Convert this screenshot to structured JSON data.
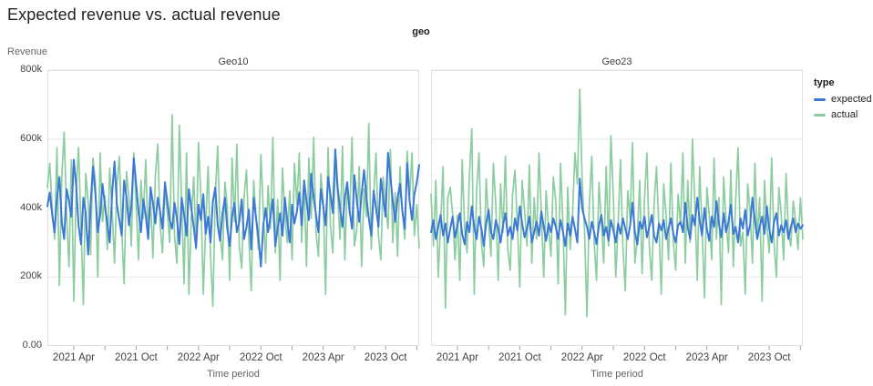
{
  "title": "Expected revenue vs. actual revenue",
  "chart_data": {
    "type": "line",
    "title": "Expected revenue vs. actual revenue",
    "facet_field": "geo",
    "layout": {
      "grid": "horizontal-only",
      "legend_position": "right",
      "points_per_series": 156,
      "x_granularity": "weekly"
    },
    "x": {
      "label": "Time period",
      "domain": [
        0,
        155
      ],
      "major_ticks": [
        {
          "i": 11,
          "label": "2021 Apr"
        },
        {
          "i": 37,
          "label": "2021 Oct"
        },
        {
          "i": 63,
          "label": "2022 Apr"
        },
        {
          "i": 89,
          "label": "2022 Oct"
        },
        {
          "i": 115,
          "label": "2023 Apr"
        },
        {
          "i": 141,
          "label": "2023 Oct"
        }
      ],
      "minor_ticks": [
        24,
        50,
        76,
        102,
        128,
        154
      ]
    },
    "y": {
      "label": "Revenue",
      "unit": "thousands",
      "domain": [
        0,
        800
      ],
      "ticks": [
        {
          "v": 0,
          "label": "0.00"
        },
        {
          "v": 200,
          "label": "200k"
        },
        {
          "v": 400,
          "label": "400k"
        },
        {
          "v": 600,
          "label": "600k"
        },
        {
          "v": 800,
          "label": "800k"
        }
      ]
    },
    "legend": {
      "title": "type",
      "items": [
        {
          "label": "expected",
          "color": "#3c78d7"
        },
        {
          "label": "actual",
          "color": "#8ccda0"
        }
      ]
    },
    "facets": [
      {
        "name": "Geo10",
        "series": [
          {
            "name": "expected",
            "color": "#3c78d7",
            "values": [
              405,
              445,
              380,
              330,
              430,
              490,
              360,
              310,
              455,
              420,
              375,
              540,
              465,
              350,
              295,
              430,
              385,
              265,
              410,
              520,
              445,
              330,
              380,
              470,
              405,
              355,
              300,
              445,
              535,
              410,
              365,
              320,
              480,
              430,
              350,
              405,
              545,
              470,
              390,
              330,
              425,
              380,
              310,
              460,
              415,
              355,
              430,
              390,
              340,
              475,
              420,
              365,
              340,
              415,
              370,
              295,
              430,
              380,
              320,
              455,
              400,
              345,
              285,
              410,
              365,
              440,
              325,
              375,
              300,
              420,
              460,
              350,
              305,
              385,
              430,
              340,
              290,
              375,
              415,
              330,
              360,
              425,
              310,
              345,
              395,
              280,
              430,
              370,
              315,
              230,
              350,
              400,
              330,
              375,
              425,
              290,
              340,
              385,
              320,
              430,
              365,
              300,
              410,
              355,
              390,
              445,
              350,
              480,
              420,
              365,
              500,
              430,
              380,
              330,
              455,
              405,
              350,
              490,
              440,
              385,
              570,
              460,
              400,
              345,
              430,
              475,
              390,
              340,
              495,
              420,
              360,
              440,
              510,
              430,
              370,
              320,
              450,
              400,
              345,
              485,
              430,
              375,
              560,
              490,
              420,
              360,
              430,
              470,
              390,
              340,
              530,
              420,
              365,
              440,
              475,
              525
            ]
          },
          {
            "name": "actual",
            "color": "#8ccda0",
            "values": [
              460,
              530,
              400,
              310,
              575,
              175,
              490,
              620,
              380,
              230,
              540,
              130,
              450,
              575,
              345,
              120,
              500,
              420,
              265,
              545,
              480,
              200,
              560,
              360,
              435,
              280,
              515,
              390,
              240,
              465,
              550,
              335,
              180,
              505,
              430,
              290,
              560,
              410,
              250,
              480,
              370,
              540,
              310,
              430,
              255,
              495,
              585,
              350,
              270,
              450,
              390,
              300,
              670,
              320,
              240,
              640,
              410,
              180,
              560,
              150,
              370,
              490,
              280,
              590,
              430,
              150,
              350,
              520,
              260,
              115,
              440,
              580,
              330,
              250,
              475,
              405,
              190,
              545,
              360,
              585,
              290,
              225,
              430,
              510,
              310,
              160,
              480,
              370,
              280,
              555,
              395,
              240,
              465,
              340,
              605,
              270,
              425,
              190,
              515,
              380,
              300,
              450,
              250,
              530,
              410,
              560,
              300,
              480,
              230,
              545,
              370,
              605,
              330,
              260,
              500,
              420,
              150,
              575,
              350,
              270,
              535,
              440,
              310,
              580,
              250,
              460,
              380,
              605,
              290,
              340,
              520,
              230,
              455,
              375,
              645,
              280,
              430,
              560,
              320,
              250,
              490,
              410,
              340,
              570,
              300,
              445,
              260,
              520,
              390,
              310,
              565,
              430,
              560,
              320,
              410,
              285
            ]
          }
        ]
      },
      {
        "name": "Geo23",
        "series": [
          {
            "name": "expected",
            "color": "#3c78d7",
            "values": [
              330,
              365,
              310,
              345,
              380,
              320,
              355,
              300,
              340,
              375,
              315,
              350,
              385,
              325,
              295,
              360,
              330,
              405,
              345,
              310,
              375,
              340,
              290,
              355,
              395,
              330,
              310,
              365,
              340,
              300,
              350,
              385,
              320,
              345,
              310,
              370,
              335,
              405,
              355,
              315,
              340,
              375,
              300,
              330,
              360,
              320,
              390,
              345,
              305,
              355,
              330,
              370,
              345,
              310,
              365,
              330,
              290,
              355,
              320,
              375,
              340,
              300,
              485,
              400,
              370,
              345,
              310,
              360,
              330,
              295,
              350,
              380,
              320,
              345,
              305,
              365,
              335,
              300,
              355,
              325,
              370,
              340,
              310,
              350,
              415,
              330,
              295,
              360,
              340,
              375,
              315,
              345,
              380,
              320,
              300,
              355,
              335,
              365,
              310,
              340,
              370,
              325,
              300,
              350,
              360,
              330,
              415,
              345,
              310,
              380,
              350,
              430,
              365,
              320,
              400,
              340,
              305,
              375,
              345,
              420,
              355,
              315,
              385,
              330,
              360,
              410,
              325,
              345,
              300,
              370,
              340,
              395,
              320,
              350,
              430,
              365,
              310,
              345,
              375,
              325,
              405,
              340,
              300,
              360,
              385,
              320,
              350,
              330,
              365,
              310,
              345,
              370,
              330,
              355,
              340,
              350
            ]
          },
          {
            "name": "actual",
            "color": "#8ccda0",
            "values": [
              440,
              290,
              480,
              200,
              350,
              520,
              110,
              430,
              460,
              380,
              250,
              380,
              190,
              540,
              340,
              270,
              495,
              630,
              150,
              450,
              560,
              300,
              230,
              485,
              360,
              260,
              530,
              410,
              190,
              470,
              330,
              550,
              280,
              220,
              440,
              510,
              350,
              170,
              480,
              390,
              290,
              525,
              240,
              430,
              310,
              560,
              380,
              200,
              450,
              340,
              260,
              490,
              420,
              180,
              530,
              350,
              90,
              460,
              280,
              380,
              560,
              470,
              745,
              480,
              330,
              85,
              410,
              550,
              300,
              190,
              475,
              360,
              240,
              520,
              290,
              610,
              430,
              200,
              350,
              540,
              280,
              160,
              450,
              370,
              590,
              240,
              310,
              480,
              210,
              430,
              560,
              290,
              190,
              410,
              520,
              340,
              150,
              470,
              380,
              250,
              530,
              300,
              220,
              440,
              350,
              560,
              240,
              480,
              300,
              600,
              410,
              190,
              520,
              340,
              140,
              460,
              380,
              250,
              545,
              310,
              430,
              120,
              490,
              360,
              270,
              510,
              230,
              420,
              575,
              290,
              330,
              150,
              470,
              390,
              240,
              530,
              310,
              430,
              130,
              480,
              350,
              270,
              545,
              300,
              200,
              460,
              380,
              250,
              500,
              330,
              290,
              420,
              360,
              280,
              430,
              310
            ]
          }
        ]
      }
    ]
  }
}
